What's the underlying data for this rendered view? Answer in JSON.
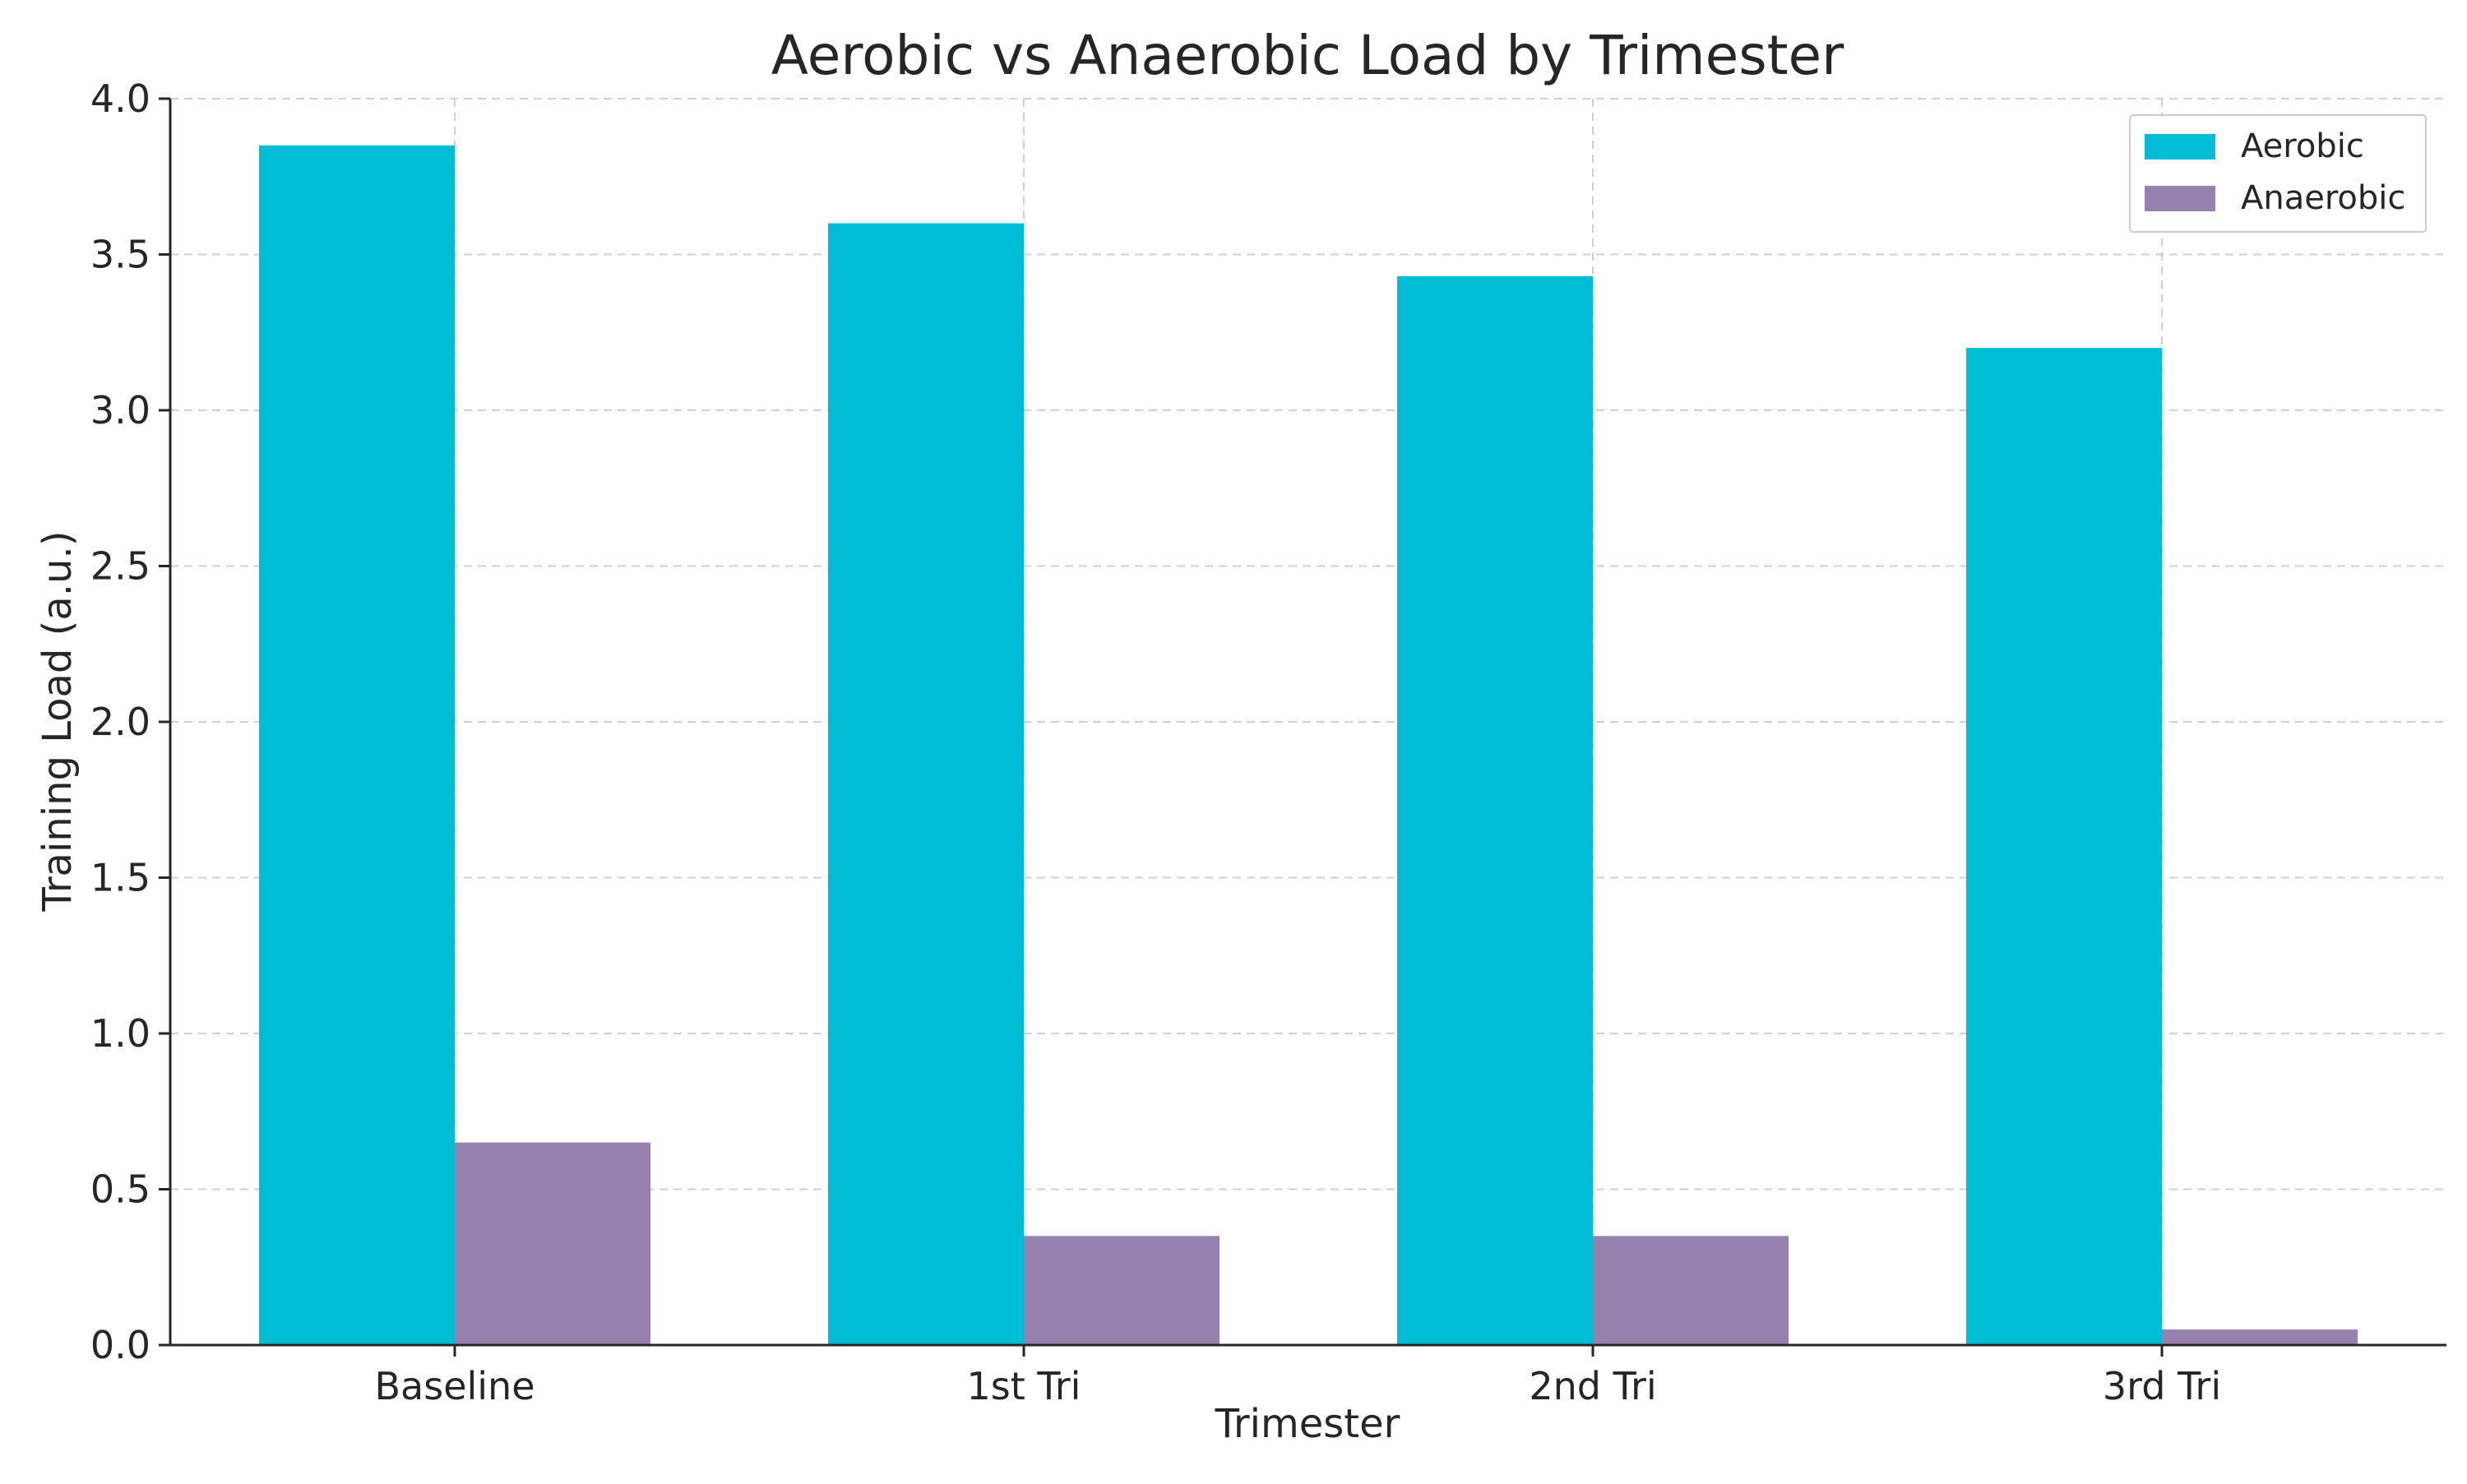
{
  "chart_data": {
    "type": "bar",
    "title": "Aerobic vs Anaerobic Load by Trimester",
    "xlabel": "Trimester",
    "ylabel": "Training Load (a.u.)",
    "categories": [
      "Baseline",
      "1st Tri",
      "2nd Tri",
      "3rd Tri"
    ],
    "series": [
      {
        "name": "Aerobic",
        "color": "#00BCD4",
        "values": [
          3.85,
          3.6,
          3.43,
          3.2
        ]
      },
      {
        "name": "Anaerobic",
        "color": "#9580AE",
        "values": [
          0.65,
          0.35,
          0.35,
          0.05
        ]
      }
    ],
    "ylim": [
      0,
      4.0
    ],
    "yticks": [
      "0.0",
      "0.5",
      "1.0",
      "1.5",
      "2.0",
      "2.5",
      "3.0",
      "3.5",
      "4.0"
    ],
    "grid": true,
    "legend_position": "top-right"
  }
}
